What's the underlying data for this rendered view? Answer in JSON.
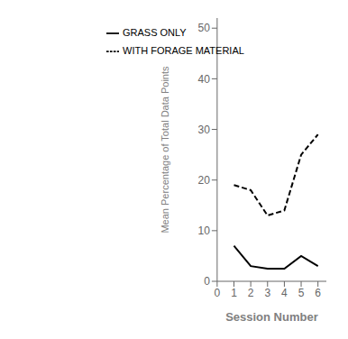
{
  "chart_data": {
    "type": "line",
    "x": [
      1,
      2,
      3,
      4,
      5,
      6
    ],
    "series": [
      {
        "name": "WITH FORAGE MATERIAL",
        "color": "#000000",
        "line_style": "dashed",
        "values": [
          19,
          18,
          13,
          14,
          25,
          29
        ]
      },
      {
        "name": "GRASS ONLY",
        "color": "#000000",
        "line_style": "solid",
        "values": [
          7,
          3,
          2.5,
          2.5,
          5,
          3
        ]
      }
    ],
    "xlabel": "Session Number",
    "ylabel": "Mean Percentage of Total Data Points",
    "xlim": [
      0,
      6.5
    ],
    "xticks": [
      0,
      1,
      2,
      3,
      4,
      5,
      6
    ],
    "ylim": [
      0,
      52
    ],
    "yticks": [
      0,
      10,
      20,
      30,
      40,
      50
    ],
    "legend": "upper left",
    "grid": false
  }
}
